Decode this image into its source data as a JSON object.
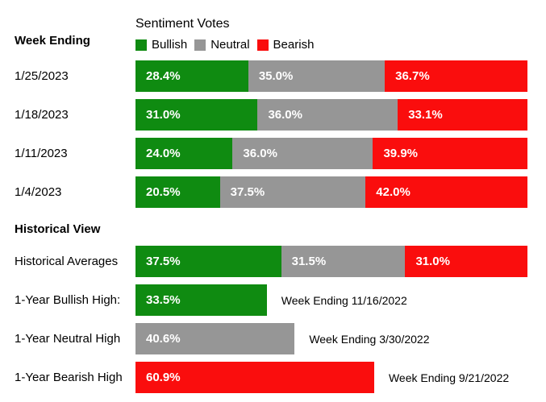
{
  "title": "Sentiment Votes",
  "left_heading": "Week Ending",
  "historical_heading": "Historical View",
  "colors": {
    "Bullish": "#0f8b11",
    "Neutral": "#969696",
    "Bearish": "#fa0d0d",
    "text_on_bar": "#ffffff",
    "background": "#ffffff"
  },
  "legend": [
    {
      "name": "Bullish"
    },
    {
      "name": "Neutral"
    },
    {
      "name": "Bearish"
    }
  ],
  "chart_data": {
    "type": "bar",
    "subtype": "horizontal-stacked",
    "title": "Sentiment Votes",
    "xlabel": "",
    "ylabel": "Week Ending",
    "xlim": [
      0,
      100
    ],
    "value_suffix": "%",
    "grid": false,
    "legend_position": "top",
    "weekly": {
      "categories": [
        "1/25/2023",
        "1/18/2023",
        "1/11/2023",
        "1/4/2023"
      ],
      "series": [
        {
          "name": "Bullish",
          "values": [
            28.4,
            31.0,
            24.0,
            20.5
          ]
        },
        {
          "name": "Neutral",
          "values": [
            35.0,
            36.0,
            36.0,
            37.5
          ]
        },
        {
          "name": "Bearish",
          "values": [
            36.7,
            33.1,
            39.9,
            42.0
          ]
        }
      ]
    },
    "historical": [
      {
        "label": "Historical Averages",
        "segments": [
          {
            "series": "Bullish",
            "value": 37.5
          },
          {
            "series": "Neutral",
            "value": 31.5
          },
          {
            "series": "Bearish",
            "value": 31.0
          }
        ],
        "annotation": ""
      },
      {
        "label": "1-Year Bullish High:",
        "segments": [
          {
            "series": "Bullish",
            "value": 33.5
          }
        ],
        "annotation": "Week Ending 11/16/2022"
      },
      {
        "label": "1-Year Neutral High",
        "segments": [
          {
            "series": "Neutral",
            "value": 40.6
          }
        ],
        "annotation": "Week Ending 3/30/2022"
      },
      {
        "label": "1-Year Bearish High",
        "segments": [
          {
            "series": "Bearish",
            "value": 60.9
          }
        ],
        "annotation": "Week Ending 9/21/2022"
      }
    ]
  }
}
